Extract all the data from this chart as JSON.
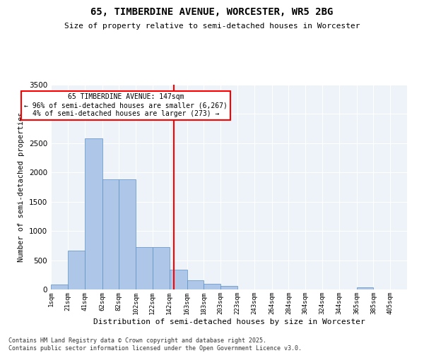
{
  "title_line1": "65, TIMBERDINE AVENUE, WORCESTER, WR5 2BG",
  "title_line2": "Size of property relative to semi-detached houses in Worcester",
  "xlabel": "Distribution of semi-detached houses by size in Worcester",
  "ylabel": "Number of semi-detached properties",
  "property_size": 147,
  "pct_smaller": 96,
  "count_smaller": 6267,
  "pct_larger": 4,
  "count_larger": 273,
  "bin_labels": [
    "1sqm",
    "21sqm",
    "41sqm",
    "62sqm",
    "82sqm",
    "102sqm",
    "122sqm",
    "142sqm",
    "163sqm",
    "183sqm",
    "203sqm",
    "223sqm",
    "243sqm",
    "264sqm",
    "284sqm",
    "304sqm",
    "324sqm",
    "344sqm",
    "365sqm",
    "385sqm",
    "405sqm"
  ],
  "bin_edges": [
    1,
    21,
    41,
    62,
    82,
    102,
    122,
    142,
    163,
    183,
    203,
    223,
    243,
    264,
    284,
    304,
    324,
    344,
    365,
    385,
    405
  ],
  "bar_heights": [
    80,
    660,
    2580,
    1880,
    1880,
    720,
    720,
    340,
    160,
    100,
    60,
    0,
    0,
    0,
    0,
    0,
    0,
    0,
    40,
    0,
    0
  ],
  "bar_color": "#aec6e8",
  "bar_edge_color": "#5a8fc4",
  "vline_color": "red",
  "background_color": "#eef3fa",
  "ylim": [
    0,
    3500
  ],
  "yticks": [
    0,
    500,
    1000,
    1500,
    2000,
    2500,
    3000,
    3500
  ],
  "footer_text": "Contains HM Land Registry data © Crown copyright and database right 2025.\nContains public sector information licensed under the Open Government Licence v3.0."
}
